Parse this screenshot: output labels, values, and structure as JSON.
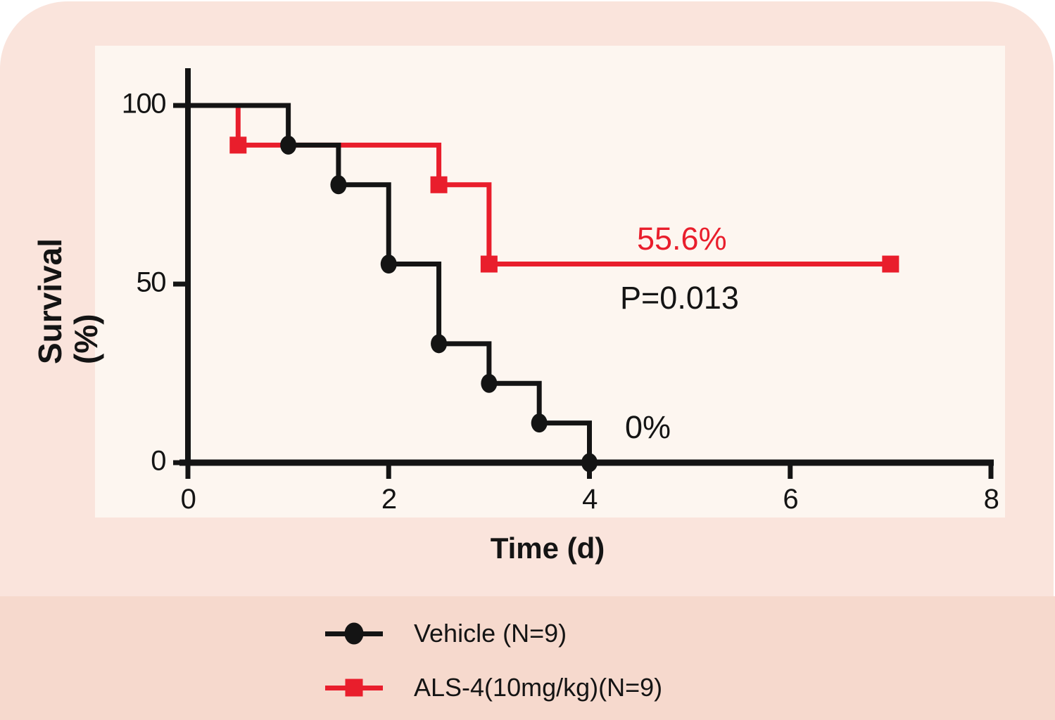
{
  "figure": {
    "y_axis_title_line1": "Survival",
    "y_axis_title_line2": "(%)",
    "x_axis_title": "Time (d)"
  },
  "annotations": {
    "als4_final_survival": "55.6%",
    "p_value": "P=0.013",
    "vehicle_final_survival": "0%"
  },
  "legend": {
    "items": [
      {
        "label": "Vehicle (N=9)",
        "marker": "circle-marker-icon",
        "color": "#141414"
      },
      {
        "label": "ALS-4(10mg/kg)(N=9)",
        "marker": "square-marker-icon",
        "color": "#e91e2c"
      }
    ]
  },
  "colors": {
    "frame_pink": "#fae4dc",
    "legend_band_pink": "#f6d9cd",
    "plot_panel_cream": "#fdf6f0",
    "red_accent": "#e91e2c",
    "black": "#141414"
  },
  "chart_data": {
    "type": "line",
    "subtype": "kaplan-meier-survival-step",
    "title": "",
    "xlabel": "Time (d)",
    "ylabel": "Survival (%)",
    "xlim": [
      0,
      8
    ],
    "ylim": [
      0,
      100
    ],
    "x_ticks": [
      0,
      2,
      4,
      6,
      8
    ],
    "y_ticks": [
      100,
      50,
      0
    ],
    "grid": false,
    "legend_position": "bottom",
    "series": [
      {
        "name": "Vehicle (N=9)",
        "n": 9,
        "color": "#141414",
        "marker": "circle",
        "step_points": [
          [
            0,
            100
          ],
          [
            1,
            100
          ],
          [
            1,
            88.9
          ],
          [
            1.5,
            88.9
          ],
          [
            1.5,
            77.8
          ],
          [
            2,
            77.8
          ],
          [
            2,
            55.6
          ],
          [
            2.5,
            55.6
          ],
          [
            2.5,
            33.3
          ],
          [
            3,
            33.3
          ],
          [
            3,
            22.2
          ],
          [
            3.5,
            22.2
          ],
          [
            3.5,
            11.1
          ],
          [
            4,
            11.1
          ],
          [
            4,
            0
          ]
        ],
        "markers": [
          [
            1,
            88.9
          ],
          [
            1.5,
            77.8
          ],
          [
            2,
            55.6
          ],
          [
            2.5,
            33.3
          ],
          [
            3,
            22.2
          ],
          [
            3.5,
            11.1
          ],
          [
            4,
            0
          ]
        ],
        "final_survival_pct": 0
      },
      {
        "name": "ALS-4(10mg/kg)(N=9)",
        "n": 9,
        "color": "#e91e2c",
        "marker": "square",
        "step_points": [
          [
            0,
            100
          ],
          [
            0.5,
            100
          ],
          [
            0.5,
            88.9
          ],
          [
            2.5,
            88.9
          ],
          [
            2.5,
            77.8
          ],
          [
            3,
            77.8
          ],
          [
            3,
            55.6
          ],
          [
            7,
            55.6
          ]
        ],
        "markers": [
          [
            0.5,
            88.9
          ],
          [
            2.5,
            77.8
          ],
          [
            3,
            55.6
          ],
          [
            7,
            55.6
          ]
        ],
        "final_survival_pct": 55.6
      }
    ],
    "annotations": [
      {
        "text": "55.6%",
        "color": "#e91e2c",
        "near": [
          4.9,
          63
        ]
      },
      {
        "text": "P=0.013",
        "color": "#141414",
        "near": [
          4.3,
          46
        ]
      },
      {
        "text": "0%",
        "color": "#141414",
        "near": [
          4.4,
          11
        ]
      }
    ],
    "p_value": "P=0.013"
  }
}
